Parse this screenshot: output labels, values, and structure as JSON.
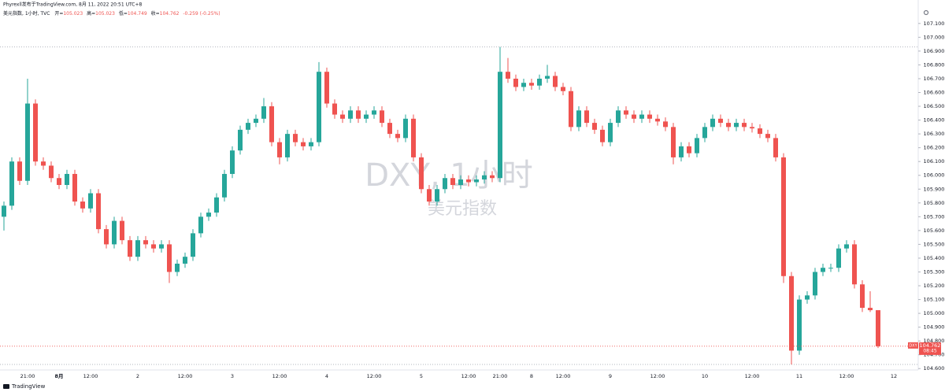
{
  "chart_data": {
    "type": "candlestick",
    "attribution": "Phyrexll发布于TradingView.com, 8月 11, 2022 20:51 UTC+8",
    "symbol_line": "美元指数, 1小时, TVC",
    "ohlc_labels": [
      "开=",
      "高=",
      "低=",
      "收="
    ],
    "change": "-0.259 (-0.25%)",
    "watermark": "DXY, 1小时",
    "watermark_sub": "美元指数",
    "price_tag": {
      "symbol": "DXY",
      "countdown": "08:45"
    },
    "brand": "TradingView",
    "up_color": "#26a69a",
    "down_color": "#ef5350",
    "categories": [
      null,
      null,
      null,
      "21:00",
      null,
      null,
      null,
      "8月",
      null,
      null,
      null,
      "12:00",
      null,
      null,
      null,
      null,
      null,
      "2",
      null,
      null,
      null,
      null,
      null,
      "12:00",
      null,
      null,
      null,
      null,
      null,
      "3",
      null,
      null,
      null,
      null,
      null,
      "12:00",
      null,
      null,
      null,
      null,
      null,
      "4",
      null,
      null,
      null,
      null,
      null,
      "12:00",
      null,
      null,
      null,
      null,
      null,
      "5",
      null,
      null,
      null,
      null,
      null,
      "12:00",
      null,
      null,
      null,
      "21:00",
      null,
      null,
      null,
      "8",
      null,
      null,
      null,
      "12:00",
      null,
      null,
      null,
      null,
      null,
      "9",
      null,
      null,
      null,
      null,
      null,
      "12:00",
      null,
      null,
      null,
      null,
      null,
      "10",
      null,
      null,
      null,
      null,
      null,
      "12:00",
      null,
      null,
      null,
      null,
      null,
      "11",
      null,
      null,
      null,
      null,
      null,
      "12:00",
      null,
      null,
      null,
      null,
      null,
      "12"
    ],
    "open": [
      105.7,
      105.78,
      106.1,
      105.96,
      106.52,
      106.1,
      106.07,
      105.98,
      105.93,
      106.01,
      105.81,
      105.76,
      105.87,
      105.61,
      105.5,
      105.67,
      105.53,
      105.41,
      105.53,
      105.5,
      105.47,
      105.5,
      105.3,
      105.36,
      105.41,
      105.58,
      105.7,
      105.73,
      105.84,
      106.01,
      106.18,
      106.33,
      106.38,
      106.41,
      106.5,
      106.24,
      106.13,
      106.3,
      106.24,
      106.21,
      106.24,
      106.75,
      106.52,
      106.44,
      106.41,
      106.47,
      106.41,
      106.44,
      106.47,
      106.38,
      106.3,
      106.27,
      106.41,
      106.13,
      105.9,
      105.81,
      105.9,
      105.98,
      105.93,
      105.97,
      105.95,
      105.97,
      106.0,
      105.98,
      106.75,
      106.7,
      106.64,
      106.67,
      106.65,
      106.7,
      106.72,
      106.64,
      106.61,
      106.35,
      106.47,
      106.38,
      106.33,
      106.24,
      106.38,
      106.47,
      106.44,
      106.41,
      106.44,
      106.41,
      106.39,
      106.35,
      106.13,
      106.21,
      106.16,
      106.27,
      106.35,
      106.41,
      106.38,
      106.35,
      106.38,
      106.35,
      106.34,
      106.3,
      106.27,
      106.13,
      105.27,
      104.73,
      105.1,
      105.13,
      105.3,
      105.33,
      105.33,
      105.47,
      105.5,
      105.21,
      105.04,
      105.023,
      null,
      null
    ],
    "high": [
      105.81,
      106.13,
      106.13,
      106.7,
      106.55,
      106.13,
      106.1,
      106.01,
      106.04,
      106.04,
      105.84,
      105.9,
      105.9,
      105.64,
      105.7,
      105.7,
      105.56,
      105.56,
      105.56,
      105.53,
      105.53,
      105.53,
      105.39,
      105.44,
      105.61,
      105.73,
      105.76,
      105.87,
      106.04,
      106.21,
      106.36,
      106.41,
      106.44,
      106.56,
      106.53,
      106.27,
      106.33,
      106.33,
      106.27,
      106.27,
      106.82,
      106.78,
      106.55,
      106.47,
      106.5,
      106.5,
      106.47,
      106.5,
      106.5,
      106.41,
      106.33,
      106.44,
      106.44,
      106.16,
      105.93,
      105.93,
      106.01,
      106.01,
      106.0,
      106.0,
      106.0,
      106.03,
      106.03,
      106.93,
      106.85,
      106.73,
      106.7,
      106.7,
      106.73,
      106.8,
      106.75,
      106.67,
      106.64,
      106.5,
      106.5,
      106.41,
      106.36,
      106.41,
      106.5,
      106.5,
      106.47,
      106.47,
      106.47,
      106.44,
      106.42,
      106.38,
      106.24,
      106.24,
      106.3,
      106.38,
      106.44,
      106.44,
      106.41,
      106.41,
      106.41,
      106.38,
      106.37,
      106.33,
      106.3,
      106.16,
      105.3,
      105.13,
      105.16,
      105.33,
      105.36,
      105.36,
      105.5,
      105.53,
      105.53,
      105.24,
      105.16,
      105.023,
      null,
      null
    ],
    "low": [
      105.6,
      105.75,
      105.93,
      105.93,
      106.07,
      106.04,
      105.95,
      105.9,
      105.9,
      105.78,
      105.73,
      105.73,
      105.58,
      105.47,
      105.47,
      105.5,
      105.38,
      105.38,
      105.47,
      105.44,
      105.44,
      105.22,
      105.27,
      105.33,
      105.38,
      105.55,
      105.67,
      105.7,
      105.81,
      105.98,
      106.15,
      106.3,
      106.35,
      106.38,
      106.21,
      106.08,
      106.1,
      106.21,
      106.18,
      106.18,
      106.21,
      106.49,
      106.41,
      106.38,
      106.38,
      106.38,
      106.38,
      106.41,
      106.35,
      106.27,
      106.24,
      106.24,
      106.1,
      105.87,
      105.78,
      105.78,
      105.87,
      105.9,
      105.9,
      105.92,
      105.92,
      105.94,
      105.95,
      105.95,
      106.67,
      106.61,
      106.61,
      106.62,
      106.62,
      106.67,
      106.61,
      106.58,
      106.32,
      106.32,
      106.35,
      106.3,
      106.21,
      106.21,
      106.35,
      106.41,
      106.38,
      106.38,
      106.38,
      106.36,
      106.32,
      106.08,
      106.1,
      106.13,
      106.13,
      106.24,
      106.32,
      106.35,
      106.32,
      106.32,
      106.32,
      106.31,
      106.27,
      106.24,
      106.1,
      105.22,
      104.63,
      104.7,
      105.07,
      105.1,
      105.27,
      105.3,
      105.3,
      105.44,
      105.18,
      105.01,
      105.01,
      104.749,
      null,
      null
    ],
    "close": [
      105.78,
      106.1,
      105.96,
      106.52,
      106.1,
      106.07,
      105.98,
      105.93,
      106.01,
      105.81,
      105.76,
      105.87,
      105.61,
      105.5,
      105.67,
      105.53,
      105.41,
      105.53,
      105.5,
      105.47,
      105.5,
      105.3,
      105.36,
      105.41,
      105.58,
      105.7,
      105.73,
      105.84,
      106.01,
      106.18,
      106.33,
      106.38,
      106.41,
      106.5,
      106.24,
      106.13,
      106.3,
      106.24,
      106.21,
      106.24,
      106.75,
      106.52,
      106.44,
      106.41,
      106.47,
      106.41,
      106.44,
      106.47,
      106.38,
      106.3,
      106.27,
      106.41,
      106.13,
      105.9,
      105.81,
      105.9,
      105.98,
      105.93,
      105.97,
      105.95,
      105.97,
      106.0,
      105.98,
      106.75,
      106.7,
      106.64,
      106.67,
      106.65,
      106.7,
      106.72,
      106.64,
      106.61,
      106.35,
      106.47,
      106.38,
      106.33,
      106.24,
      106.38,
      106.47,
      106.44,
      106.41,
      106.44,
      106.41,
      106.39,
      106.35,
      106.13,
      106.21,
      106.16,
      106.27,
      106.35,
      106.41,
      106.38,
      106.35,
      106.38,
      106.35,
      106.34,
      106.3,
      106.27,
      106.13,
      105.27,
      104.73,
      105.1,
      105.13,
      105.3,
      105.33,
      105.33,
      105.47,
      105.5,
      105.21,
      105.04,
      105.023,
      104.762,
      null,
      null
    ],
    "ylim": [
      104.59,
      107.27
    ],
    "yticks": [
      {
        "value": 104.6,
        "label": "104.600"
      },
      {
        "value": 104.7,
        "label": "104.700"
      },
      {
        "value": 104.8,
        "label": "104.800"
      },
      {
        "value": 104.9,
        "label": "104.900"
      },
      {
        "value": 105.0,
        "label": "105.000"
      },
      {
        "value": 105.1,
        "label": "105.100"
      },
      {
        "value": 105.2,
        "label": "105.200"
      },
      {
        "value": 105.3,
        "label": "105.300"
      },
      {
        "value": 105.4,
        "label": "105.400"
      },
      {
        "value": 105.5,
        "label": "105.500"
      },
      {
        "value": 105.6,
        "label": "105.600"
      },
      {
        "value": 105.7,
        "label": "105.700"
      },
      {
        "value": 105.8,
        "label": "105.800"
      },
      {
        "value": 105.9,
        "label": "105.900"
      },
      {
        "value": 106.0,
        "label": "106.000"
      },
      {
        "value": 106.1,
        "label": "106.100"
      },
      {
        "value": 106.2,
        "label": "106.200"
      },
      {
        "value": 106.3,
        "label": "106.300"
      },
      {
        "value": 106.4,
        "label": "106.400"
      },
      {
        "value": 106.5,
        "label": "106.500"
      },
      {
        "value": 106.6,
        "label": "106.600"
      },
      {
        "value": 106.7,
        "label": "106.700"
      },
      {
        "value": 106.8,
        "label": "106.800"
      },
      {
        "value": 106.9,
        "label": "106.900"
      },
      {
        "value": 107.0,
        "label": "107.000"
      },
      {
        "value": 107.1,
        "label": "107.100"
      }
    ]
  }
}
